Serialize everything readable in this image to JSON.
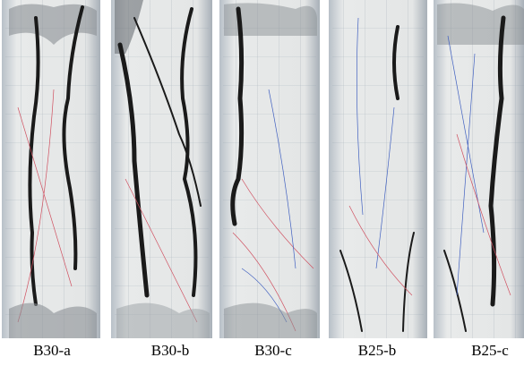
{
  "labels": [
    "B30-a",
    "B30-b",
    "B30-c",
    "B25-b",
    "B25-c"
  ]
}
